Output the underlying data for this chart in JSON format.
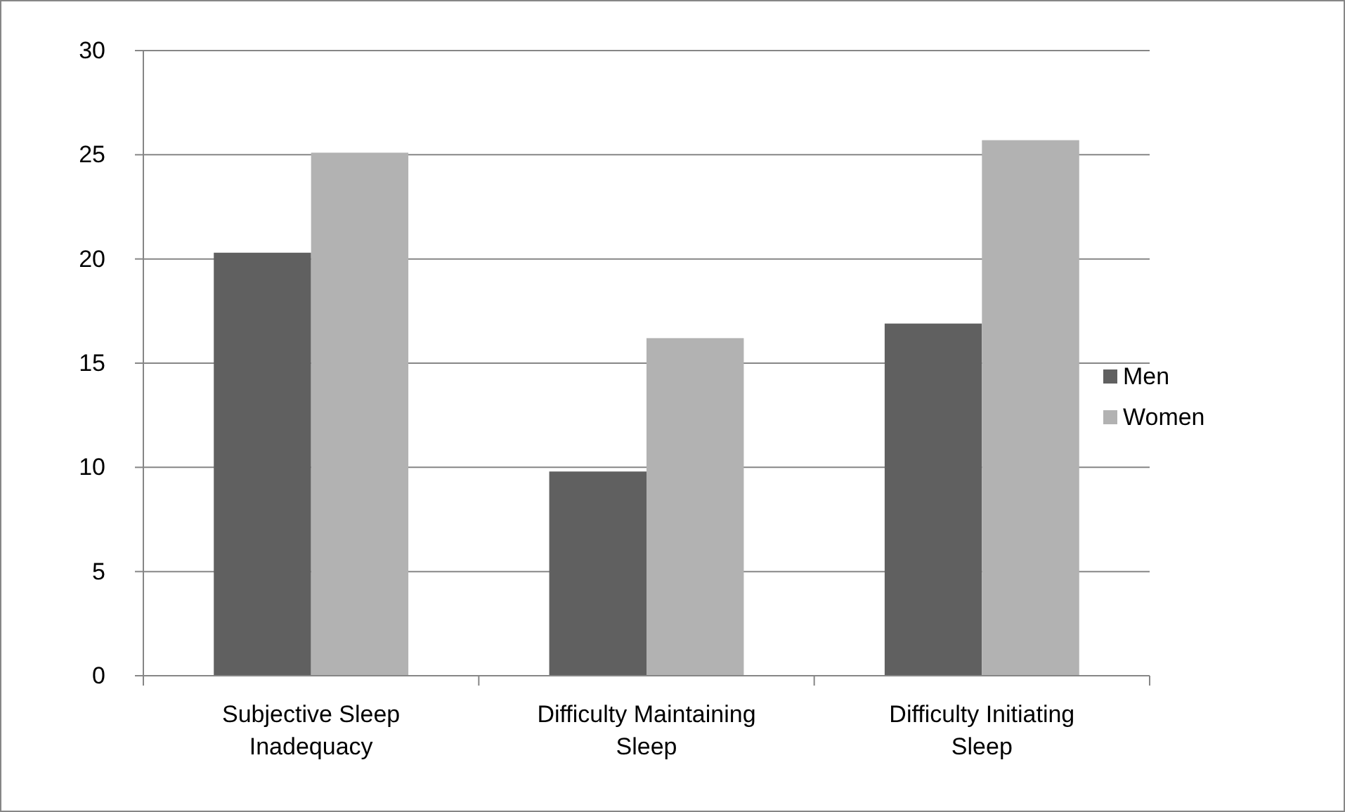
{
  "chart_data": {
    "type": "bar",
    "categories": [
      "Subjective Sleep Inadequacy",
      "Difficulty Maintaining Sleep",
      "Difficulty Initiating Sleep"
    ],
    "series": [
      {
        "name": "Men",
        "color": "#606060",
        "values": [
          20.3,
          9.8,
          16.9
        ]
      },
      {
        "name": "Women",
        "color": "#b2b2b2",
        "values": [
          25.1,
          16.2,
          25.7
        ]
      }
    ],
    "ylim": [
      0,
      30
    ],
    "yticks": [
      0,
      5,
      10,
      15,
      20,
      25,
      30
    ],
    "grid": "y",
    "legend": "right"
  }
}
